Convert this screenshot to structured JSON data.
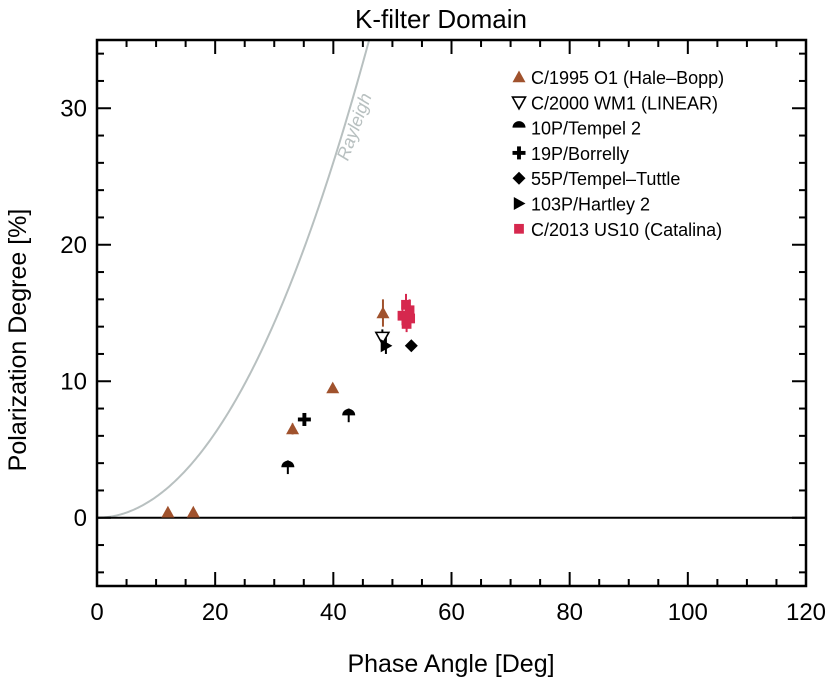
{
  "chart_data": {
    "type": "scatter",
    "title": "K-filter Domain",
    "xlabel": "Phase Angle [Deg]",
    "ylabel": "Polarization Degree [%]",
    "xlim": [
      0,
      120
    ],
    "ylim": [
      -5,
      35
    ],
    "xticks": [
      0,
      20,
      40,
      60,
      80,
      100,
      120
    ],
    "yticks": [
      0,
      10,
      20,
      30
    ],
    "x_minor_step": 5,
    "y_minor_step": 2,
    "zero_line": 0,
    "grid": false,
    "legend_position": "top-right",
    "series": [
      {
        "name": "C/1995 O1 (Hale–Bopp)",
        "marker": "triangle-up",
        "color": "#a0522d",
        "points": [
          {
            "x": 12.0,
            "y": 0.4,
            "err": 0.2
          },
          {
            "x": 16.3,
            "y": 0.4,
            "err": 0.2
          },
          {
            "x": 33.1,
            "y": 6.5,
            "err": 0.4
          },
          {
            "x": 39.9,
            "y": 9.5,
            "err": 0.3
          },
          {
            "x": 48.4,
            "y": 15.0,
            "err": 1.0
          }
        ]
      },
      {
        "name": "C/2000 WM1 (LINEAR)",
        "marker": "triangle-down-open",
        "color": "#000000",
        "points": [
          {
            "x": 48.3,
            "y": 13.2,
            "err": 0.6
          }
        ]
      },
      {
        "name": "10P/Tempel 2",
        "marker": "half-circle",
        "color": "#000000",
        "points": [
          {
            "x": 32.3,
            "y": 3.7,
            "err": 0.5
          },
          {
            "x": 42.6,
            "y": 7.5,
            "err": 0.5
          }
        ]
      },
      {
        "name": "19P/Borrelly",
        "marker": "plus",
        "color": "#000000",
        "points": [
          {
            "x": 35.1,
            "y": 7.2,
            "err": 0.4
          }
        ]
      },
      {
        "name": "55P/Tempel–Tuttle",
        "marker": "diamond",
        "color": "#000000",
        "points": [
          {
            "x": 53.2,
            "y": 12.6,
            "err": 0.2
          }
        ]
      },
      {
        "name": "103P/Hartley 2",
        "marker": "triangle-right",
        "color": "#000000",
        "points": [
          {
            "x": 48.9,
            "y": 12.6,
            "err": 0.6
          }
        ]
      },
      {
        "name": "C/2013 US10 (Catalina)",
        "marker": "square",
        "color": "#d6284e",
        "points": [
          {
            "x": 51.7,
            "y": 14.8,
            "err": 0.7
          },
          {
            "x": 52.3,
            "y": 15.6,
            "err": 0.8
          },
          {
            "x": 52.9,
            "y": 15.2,
            "err": 0.8
          },
          {
            "x": 52.4,
            "y": 14.2,
            "err": 0.6
          },
          {
            "x": 53.0,
            "y": 14.6,
            "err": 0.6
          }
        ]
      }
    ],
    "reference_curve": {
      "name": "Rayleigh",
      "color": "#b8c0c0",
      "formula": "100*sin^2(a)/(1+cos^2(a))",
      "label_x": 44.5,
      "label_y": 28.5
    }
  }
}
